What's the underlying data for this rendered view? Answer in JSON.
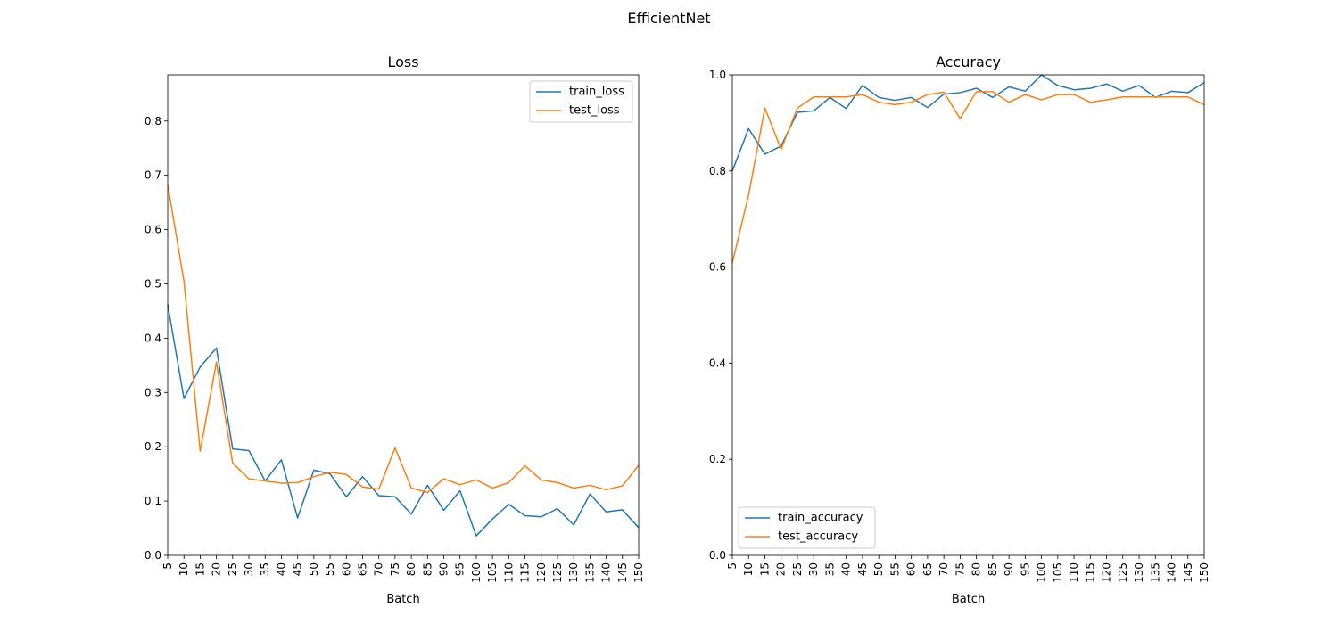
{
  "figure": {
    "suptitle": "EfficientNet"
  },
  "chart_data": [
    {
      "type": "line",
      "title": "Loss",
      "xlabel": "Batch",
      "ylabel": "",
      "x": [
        5,
        10,
        15,
        20,
        25,
        30,
        35,
        40,
        45,
        50,
        55,
        60,
        65,
        70,
        75,
        80,
        85,
        90,
        95,
        100,
        105,
        110,
        115,
        120,
        125,
        130,
        135,
        140,
        145,
        150
      ],
      "xlim": [
        5,
        150
      ],
      "ylim": [
        0,
        0.885
      ],
      "yticks": [
        0.0,
        0.1,
        0.2,
        0.3,
        0.4,
        0.5,
        0.6,
        0.7,
        0.8
      ],
      "legend_position": "upper right",
      "series": [
        {
          "name": "train_loss",
          "color": "#1f77b4",
          "values": [
            0.462,
            0.289,
            0.347,
            0.382,
            0.196,
            0.193,
            0.137,
            0.176,
            0.069,
            0.157,
            0.15,
            0.108,
            0.145,
            0.11,
            0.108,
            0.076,
            0.129,
            0.083,
            0.119,
            0.036,
            0.067,
            0.094,
            0.073,
            0.071,
            0.086,
            0.056,
            0.113,
            0.08,
            0.084,
            0.051
          ]
        },
        {
          "name": "test_loss",
          "color": "#ff7f0e",
          "values": [
            0.683,
            0.505,
            0.192,
            0.356,
            0.17,
            0.141,
            0.137,
            0.133,
            0.134,
            0.145,
            0.153,
            0.149,
            0.126,
            0.122,
            0.198,
            0.124,
            0.116,
            0.141,
            0.13,
            0.139,
            0.124,
            0.134,
            0.165,
            0.139,
            0.134,
            0.124,
            0.129,
            0.121,
            0.128,
            0.166
          ]
        }
      ]
    },
    {
      "type": "line",
      "title": "Accuracy",
      "xlabel": "Batch",
      "ylabel": "",
      "x": [
        5,
        10,
        15,
        20,
        25,
        30,
        35,
        40,
        45,
        50,
        55,
        60,
        65,
        70,
        75,
        80,
        85,
        90,
        95,
        100,
        105,
        110,
        115,
        120,
        125,
        130,
        135,
        140,
        145,
        150
      ],
      "xlim": [
        5,
        150
      ],
      "ylim": [
        0,
        1.0
      ],
      "yticks": [
        0.0,
        0.2,
        0.4,
        0.6,
        0.8,
        1.0
      ],
      "legend_position": "lower left",
      "series": [
        {
          "name": "train_accuracy",
          "color": "#1f77b4",
          "values": [
            0.8,
            0.888,
            0.835,
            0.852,
            0.922,
            0.925,
            0.953,
            0.93,
            0.978,
            0.953,
            0.947,
            0.953,
            0.932,
            0.96,
            0.963,
            0.972,
            0.953,
            0.975,
            0.966,
            1.0,
            0.978,
            0.969,
            0.972,
            0.981,
            0.966,
            0.978,
            0.953,
            0.966,
            0.963,
            0.984
          ]
        },
        {
          "name": "test_accuracy",
          "color": "#ff7f0e",
          "values": [
            0.609,
            0.75,
            0.931,
            0.845,
            0.931,
            0.954,
            0.954,
            0.954,
            0.959,
            0.943,
            0.938,
            0.943,
            0.959,
            0.964,
            0.909,
            0.965,
            0.965,
            0.943,
            0.959,
            0.948,
            0.959,
            0.959,
            0.943,
            0.948,
            0.954,
            0.954,
            0.954,
            0.954,
            0.954,
            0.938
          ]
        }
      ]
    }
  ]
}
